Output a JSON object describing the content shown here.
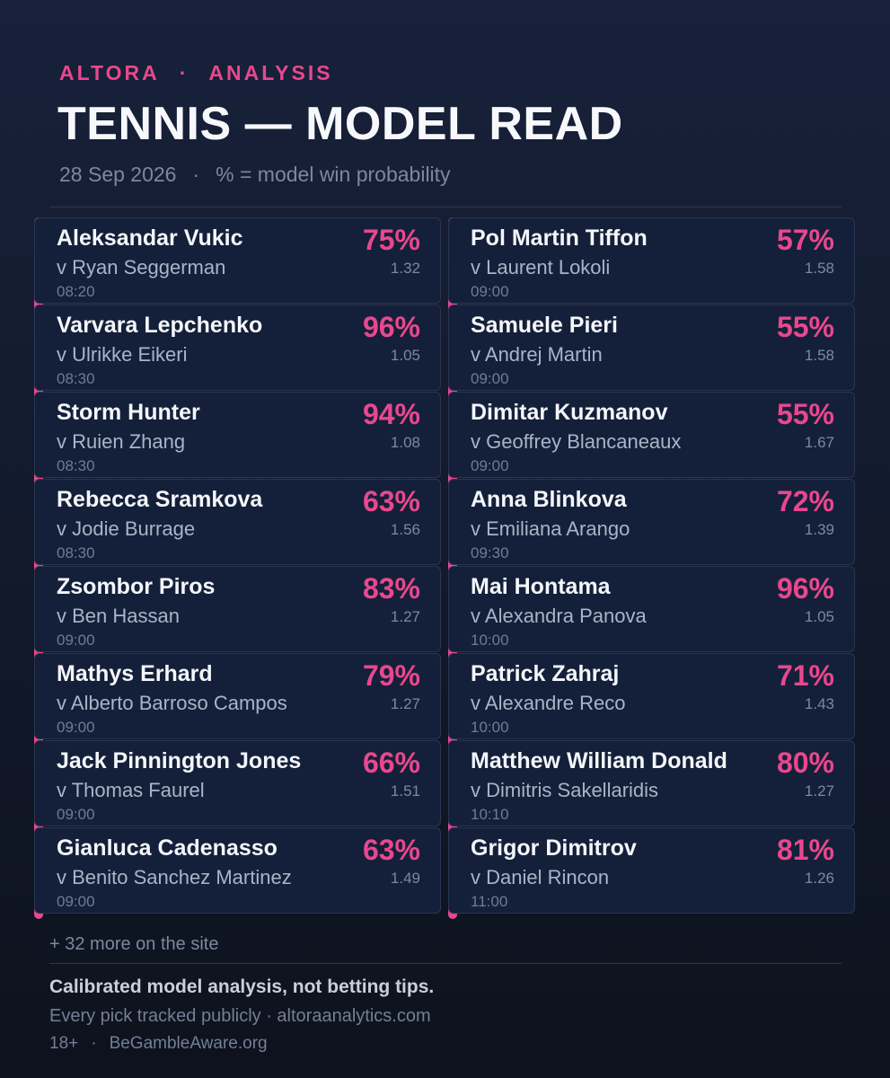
{
  "header": {
    "brand": "ALTORA",
    "separator": "·",
    "section": "ANALYSIS",
    "title": "TENNIS — MODEL READ",
    "date": "28 Sep 2026",
    "legend": "% = model win probability"
  },
  "colors": {
    "accent": "#e9478f",
    "background": "#121a2c",
    "card": "#142039"
  },
  "matches_left": [
    {
      "player": "Aleksandar Vukic",
      "opponent": "v Ryan Seggerman",
      "time": "08:20",
      "prob": "75%",
      "odds": "1.32"
    },
    {
      "player": "Varvara Lepchenko",
      "opponent": "v Ulrikke Eikeri",
      "time": "08:30",
      "prob": "96%",
      "odds": "1.05"
    },
    {
      "player": "Storm Hunter",
      "opponent": "v Ruien Zhang",
      "time": "08:30",
      "prob": "94%",
      "odds": "1.08"
    },
    {
      "player": "Rebecca Sramkova",
      "opponent": "v Jodie Burrage",
      "time": "08:30",
      "prob": "63%",
      "odds": "1.56"
    },
    {
      "player": "Zsombor Piros",
      "opponent": "v Ben Hassan",
      "time": "09:00",
      "prob": "83%",
      "odds": "1.27"
    },
    {
      "player": "Mathys Erhard",
      "opponent": "v Alberto Barroso Campos",
      "time": "09:00",
      "prob": "79%",
      "odds": "1.27"
    },
    {
      "player": "Jack Pinnington Jones",
      "opponent": "v Thomas Faurel",
      "time": "09:00",
      "prob": "66%",
      "odds": "1.51"
    },
    {
      "player": "Gianluca Cadenasso",
      "opponent": "v Benito Sanchez Martinez",
      "time": "09:00",
      "prob": "63%",
      "odds": "1.49"
    }
  ],
  "matches_right": [
    {
      "player": "Pol Martin Tiffon",
      "opponent": "v Laurent Lokoli",
      "time": "09:00",
      "prob": "57%",
      "odds": "1.58"
    },
    {
      "player": "Samuele Pieri",
      "opponent": "v Andrej Martin",
      "time": "09:00",
      "prob": "55%",
      "odds": "1.58"
    },
    {
      "player": "Dimitar Kuzmanov",
      "opponent": "v Geoffrey Blancaneaux",
      "time": "09:00",
      "prob": "55%",
      "odds": "1.67"
    },
    {
      "player": "Anna Blinkova",
      "opponent": "v Emiliana Arango",
      "time": "09:30",
      "prob": "72%",
      "odds": "1.39"
    },
    {
      "player": "Mai Hontama",
      "opponent": "v Alexandra Panova",
      "time": "10:00",
      "prob": "96%",
      "odds": "1.05"
    },
    {
      "player": "Patrick Zahraj",
      "opponent": "v Alexandre Reco",
      "time": "10:00",
      "prob": "71%",
      "odds": "1.43"
    },
    {
      "player": "Matthew William Donald",
      "opponent": "v Dimitris Sakellaridis",
      "time": "10:10",
      "prob": "80%",
      "odds": "1.27"
    },
    {
      "player": "Grigor Dimitrov",
      "opponent": "v Daniel Rincon",
      "time": "11:00",
      "prob": "81%",
      "odds": "1.26"
    }
  ],
  "footer": {
    "more": "+ 32 more on the site",
    "disclaimer": "Calibrated model analysis, not betting tips.",
    "tracking": "Every pick tracked publicly · altoraanalytics.com",
    "age": "18+",
    "separator": "·",
    "gamble": "BeGambleAware.org"
  }
}
